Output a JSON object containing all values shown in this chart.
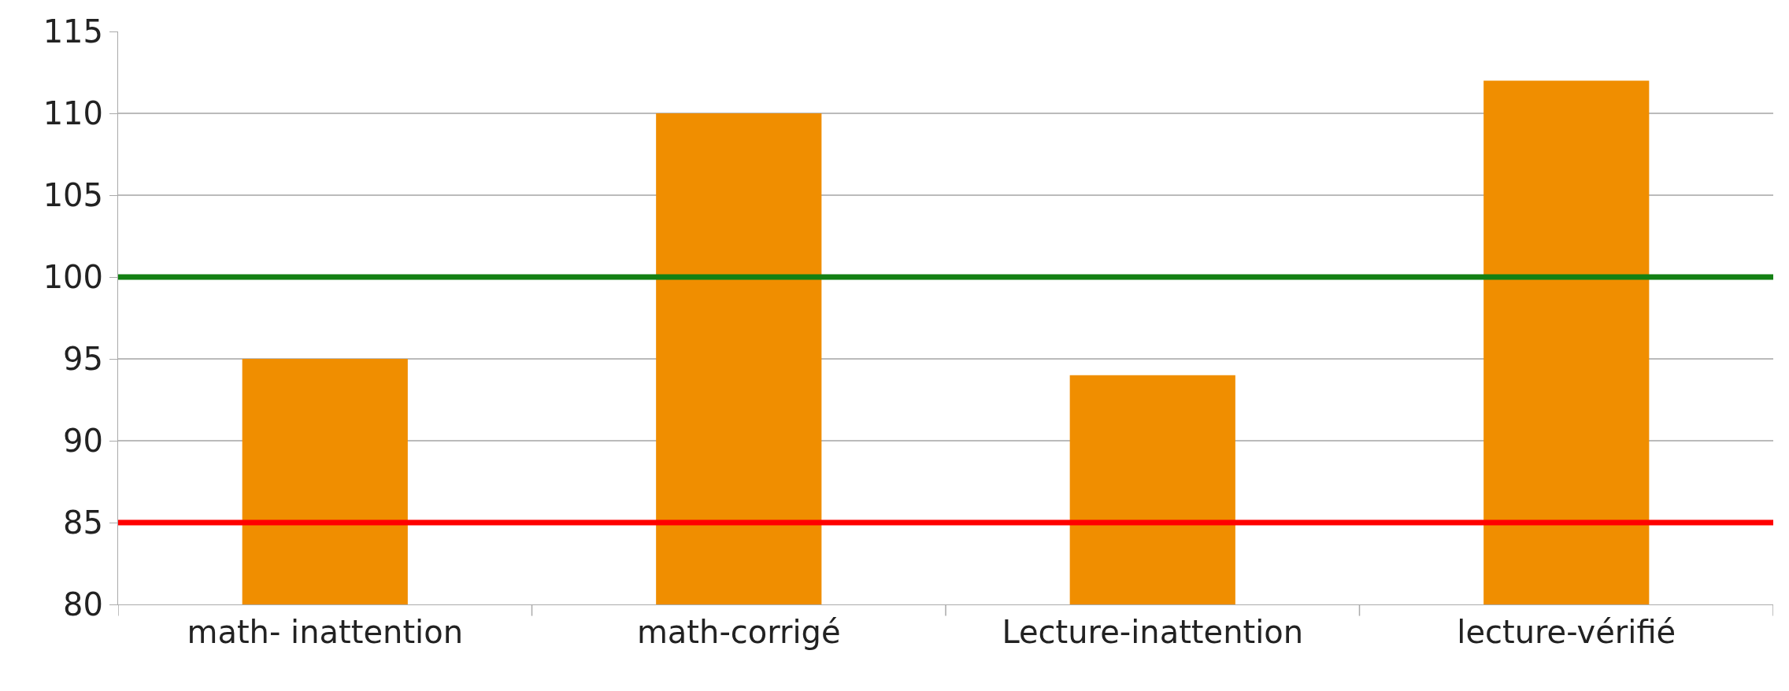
{
  "chart_data": {
    "type": "bar",
    "categories": [
      "math- inattention",
      "math-corrigé",
      "Lecture-inattention",
      "lecture-vérifié"
    ],
    "values": [
      95,
      110,
      94,
      112
    ],
    "color": "#f08e00",
    "ylim": [
      80,
      115
    ],
    "yticks": [
      80,
      85,
      90,
      95,
      100,
      105,
      110,
      115
    ],
    "grid": "y",
    "ref_lines": [
      {
        "axis": "y",
        "value": 100,
        "color": "#138013"
      },
      {
        "axis": "y",
        "value": 85,
        "color": "#ff0000"
      }
    ]
  }
}
